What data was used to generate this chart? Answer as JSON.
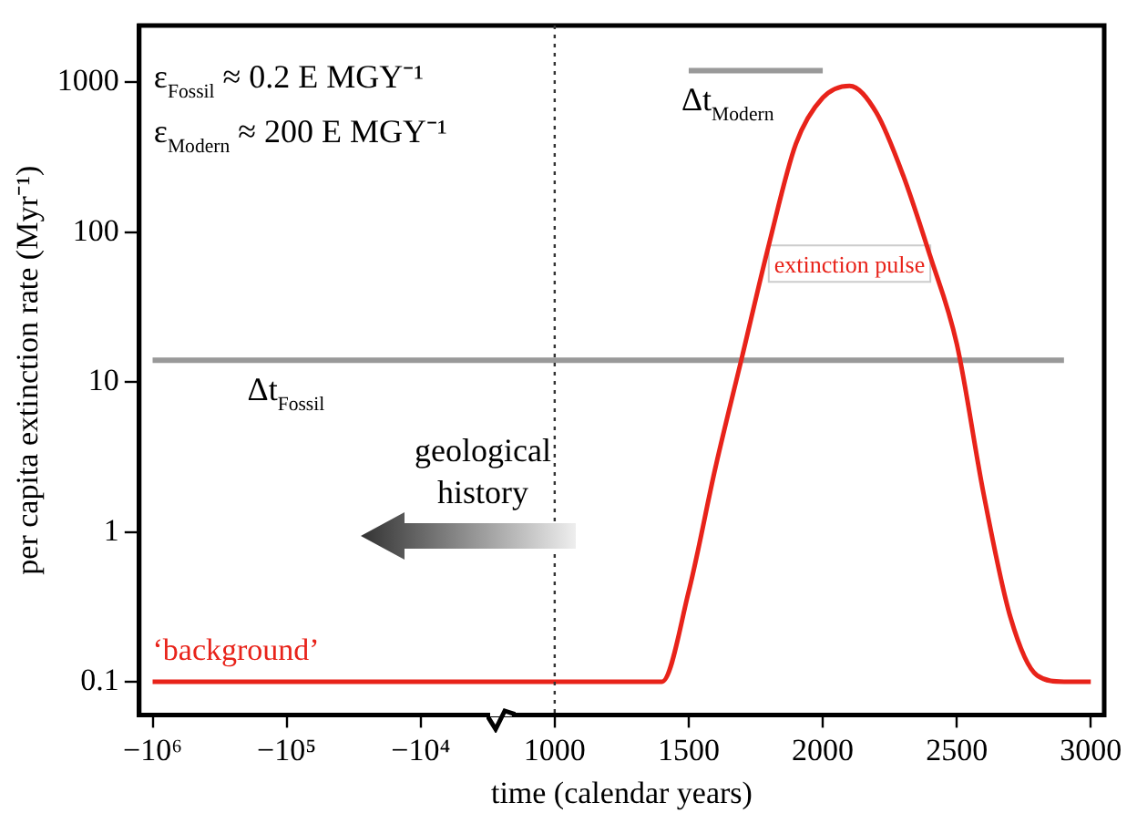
{
  "chart_data": {
    "type": "line",
    "xlabel": "time (calendar years)",
    "ylabel": "per capita extinction rate (Myr⁻¹)",
    "categories": [
      "−10⁶",
      null,
      null,
      null,
      null,
      "−10⁵",
      null,
      null,
      null,
      null,
      "−10⁴",
      null,
      null,
      null,
      null,
      "1000",
      null,
      null,
      null,
      null,
      "1500",
      null,
      null,
      null,
      null,
      "2000",
      null,
      null,
      null,
      null,
      "2500",
      null,
      null,
      null,
      null,
      "3000"
    ],
    "series": [
      {
        "color": "#e8231a",
        "marker": "none",
        "values": [
          0.1,
          0.1,
          0.1,
          0.1,
          0.1,
          0.1,
          0.1,
          0.1,
          0.1,
          0.1,
          0.1,
          0.1,
          0.1,
          0.1,
          0.1,
          0.1,
          0.1,
          0.1,
          0.1,
          0.1,
          0.4,
          2.7,
          15,
          84,
          390,
          790,
          950,
          630,
          240,
          70,
          18,
          1.8,
          0.27,
          0.11,
          0.1,
          0.1
        ]
      },
      {
        "color": "#999999",
        "marker": "none",
        "values": [
          14,
          null,
          null,
          null,
          null,
          null,
          null,
          null,
          null,
          null,
          null,
          null,
          null,
          null,
          null,
          null,
          null,
          null,
          null,
          null,
          null,
          null,
          null,
          null,
          null,
          null,
          null,
          null,
          null,
          null,
          null,
          null,
          null,
          null,
          14,
          null
        ]
      },
      {
        "color": "#999999",
        "marker": "none",
        "values": [
          null,
          null,
          null,
          null,
          null,
          null,
          null,
          null,
          null,
          null,
          null,
          null,
          null,
          null,
          null,
          null,
          null,
          null,
          null,
          null,
          1200,
          null,
          null,
          null,
          null,
          1200,
          null,
          null,
          null,
          null,
          null,
          null,
          null,
          null,
          null,
          null
        ]
      }
    ],
    "log": "y",
    "ylim": [
      0.06,
      2400
    ],
    "yticks": [
      0.1,
      1,
      10,
      100,
      1000
    ],
    "grid": false,
    "legend": false,
    "ref_lines": [
      {
        "axis": "x",
        "value": "1000",
        "color": "#333333",
        "line_style": "dotted"
      }
    ],
    "annotations": [
      "ε$_{Fossil}$ ≈ 0.2 E MGY⁻¹",
      "ε$_{Modern}$ ≈ 200 E MGY⁻¹",
      "extinction pulse",
      "‘background’",
      "geological history",
      {
        "text": "Δt$_{Fossil}$",
        "x": "−10⁶",
        "y": 14
      },
      {
        "text": "Δt$_{Modern}$",
        "x": "1500",
        "y": 1200
      }
    ]
  }
}
